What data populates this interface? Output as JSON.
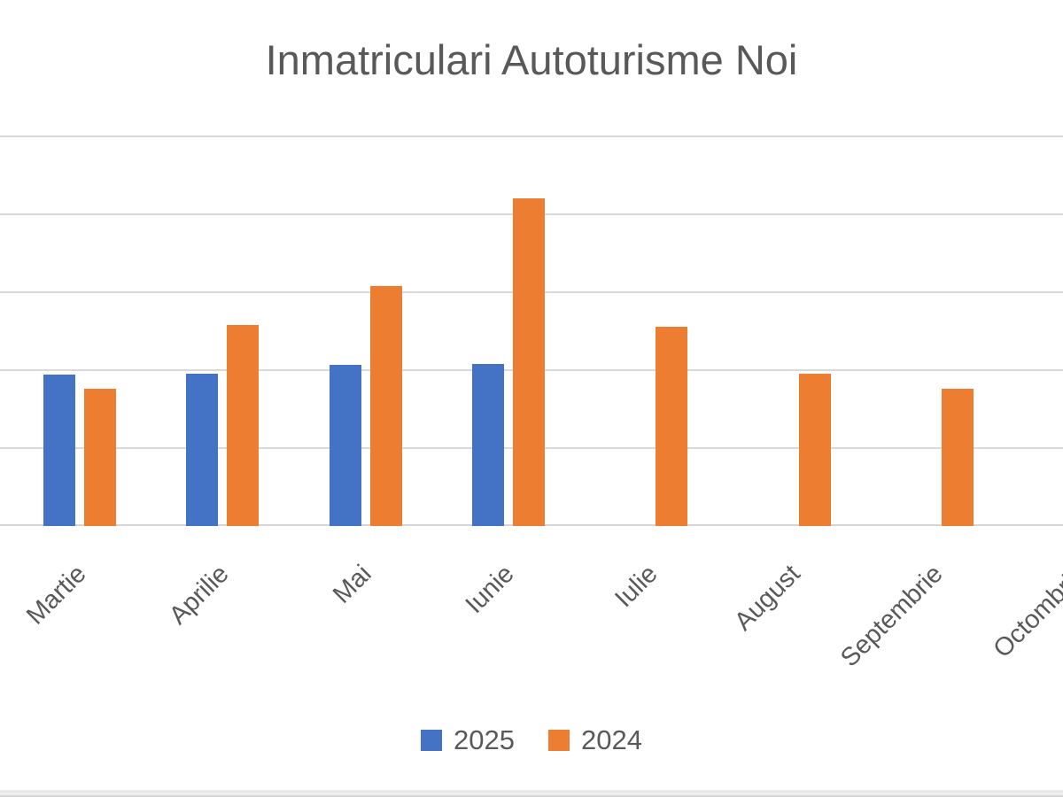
{
  "chart_data": {
    "type": "bar",
    "title": "Inmatriculari Autoturisme Noi",
    "categories": [
      "Martie",
      "Aprilie",
      "Mai",
      "Iunie",
      "Iulie",
      "August",
      "Septembrie",
      "Octombrie"
    ],
    "series": [
      {
        "name": "2025",
        "color": "#4472C4",
        "values": [
          1.94,
          1.95,
          2.07,
          2.08,
          null,
          null,
          null,
          null
        ]
      },
      {
        "name": "2024",
        "color": "#ED7D31",
        "values": [
          1.76,
          2.58,
          3.08,
          4.21,
          2.56,
          1.95,
          1.76,
          null
        ]
      }
    ],
    "xlabel": "",
    "ylabel": "",
    "value_unit": "gridline-interval (numeric y-axis tick labels not visible in screenshot)",
    "ylim": [
      0,
      5
    ],
    "gridlines": {
      "shown": true,
      "count": 5,
      "color": "#d9d9d9"
    },
    "x_axis": {
      "label_rotation_deg": 45,
      "label_color": "#595959"
    },
    "legend": {
      "position": "bottom",
      "entries": [
        "2025",
        "2024"
      ]
    },
    "title_color": "#595959",
    "background": "#ffffff"
  }
}
